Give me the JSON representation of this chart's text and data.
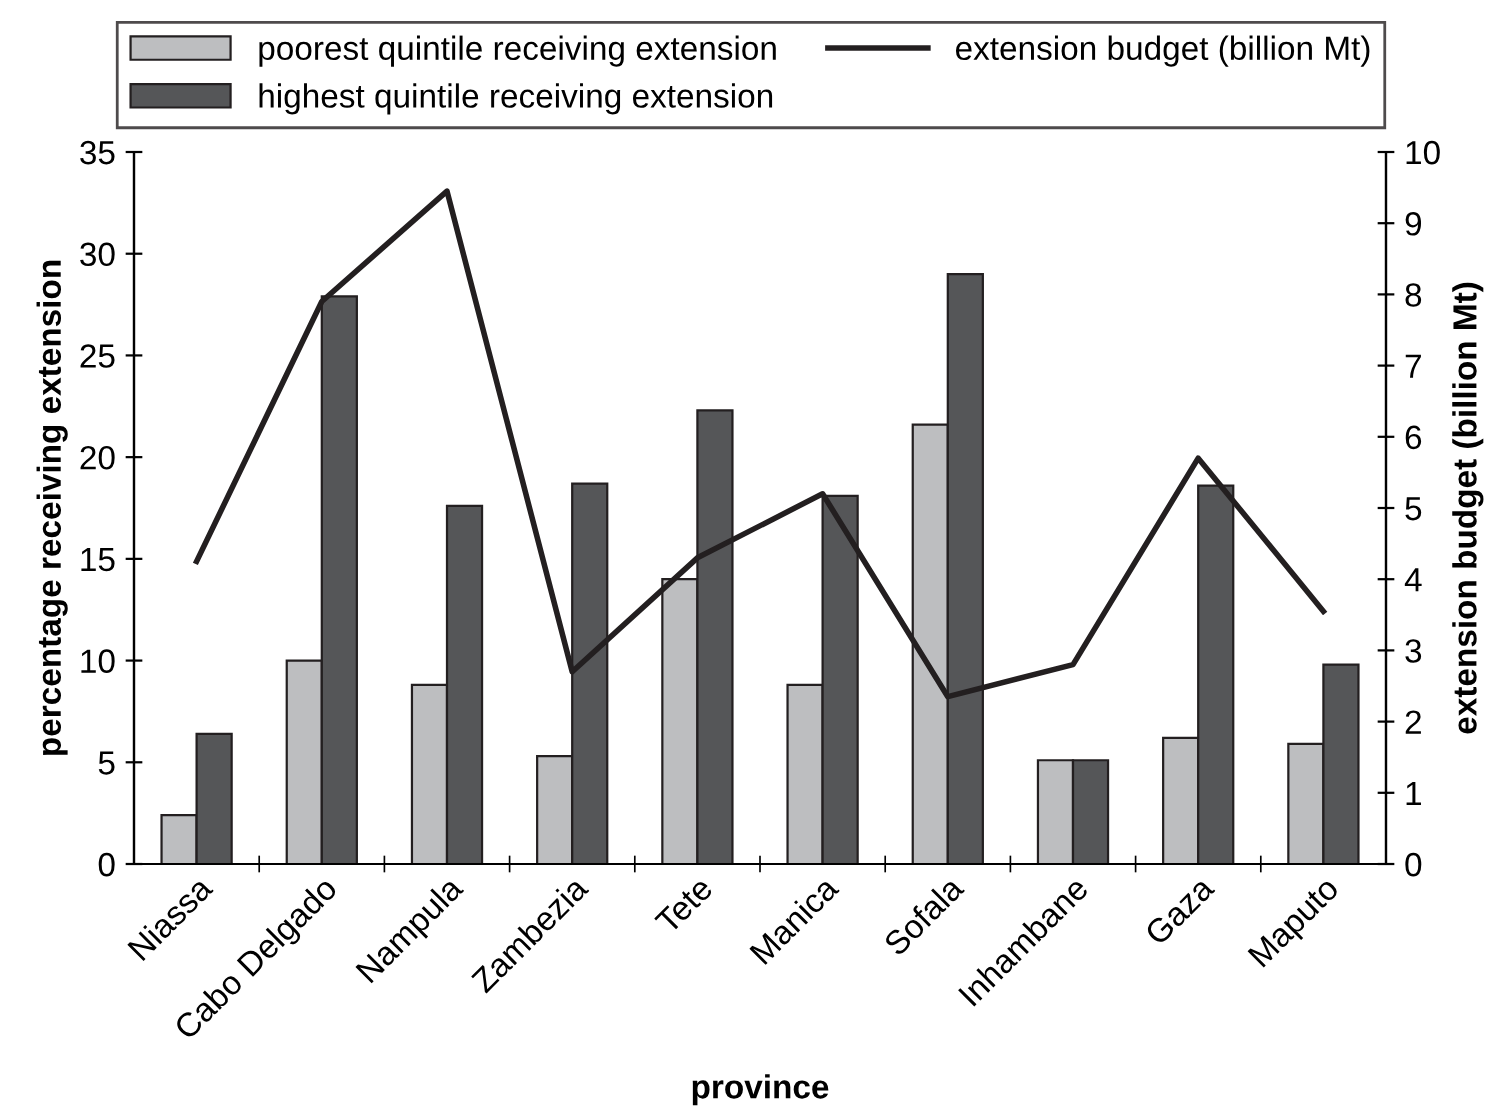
{
  "chart_data": {
    "type": "bar",
    "categories": [
      "Niassa",
      "Cabo Delgado",
      "Nampula",
      "Zambezia",
      "Tete",
      "Manica",
      "Sofala",
      "Inhambane",
      "Gaza",
      "Maputo"
    ],
    "series": [
      {
        "name": "poorest quintile receiving extension",
        "color": "#bdbec0",
        "values": [
          2.4,
          10,
          8.8,
          5.3,
          14,
          8.8,
          21.6,
          5.1,
          6.2,
          5.9
        ]
      },
      {
        "name": "highest quintile receiving extension",
        "color": "#555658",
        "values": [
          6.4,
          27.9,
          17.6,
          18.7,
          22.3,
          18.1,
          29,
          5.1,
          18.6,
          9.8
        ]
      },
      {
        "name": "extension budget (billion Mt)",
        "type": "line",
        "axis": "y2",
        "color": "#231f20",
        "values": [
          4.25,
          7.9,
          9.45,
          2.7,
          4.3,
          5.2,
          2.35,
          2.8,
          5.7,
          3.55
        ]
      }
    ],
    "xlabel": "province",
    "ylabel": "percentage receiving extension",
    "y2label": "extension budget (billion Mt)",
    "ylim": [
      0,
      35
    ],
    "yticks": [
      0,
      5,
      10,
      15,
      20,
      25,
      30,
      35
    ],
    "y2lim": [
      0,
      10
    ],
    "y2ticks": [
      0,
      1,
      2,
      3,
      4,
      5,
      6,
      7,
      8,
      9,
      10
    ],
    "legend": "top",
    "grid": false
  }
}
